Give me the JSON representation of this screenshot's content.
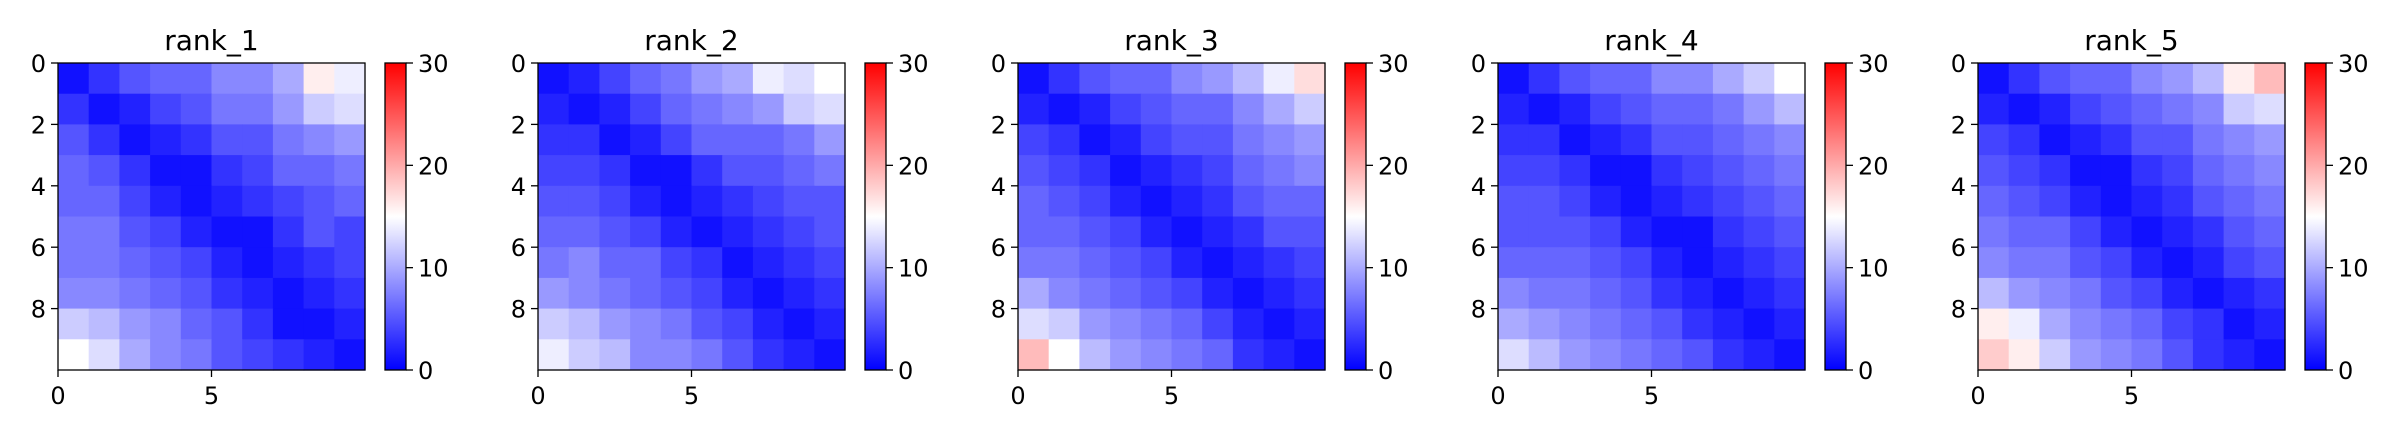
{
  "chart_data": [
    {
      "type": "heatmap",
      "title": "rank_1",
      "xticks": [
        0,
        5
      ],
      "yticks": [
        0,
        2,
        4,
        6,
        8
      ],
      "colorbar": {
        "ticks": [
          0,
          10,
          20,
          30
        ],
        "vmin": 0,
        "vmax": 30,
        "cmap": "bwr"
      },
      "matrix": [
        [
          1,
          3,
          5,
          6,
          6,
          8,
          8,
          10,
          16,
          14
        ],
        [
          3,
          1,
          2,
          4,
          5,
          7,
          7,
          9,
          12,
          13
        ],
        [
          5,
          3,
          1,
          2,
          3,
          5,
          5,
          7,
          8,
          9
        ],
        [
          6,
          5,
          3,
          1,
          1,
          3,
          4,
          6,
          6,
          7
        ],
        [
          6,
          6,
          4,
          2,
          1,
          2,
          3,
          4,
          5,
          6
        ],
        [
          7,
          7,
          5,
          4,
          2,
          1,
          1,
          3,
          5,
          4
        ],
        [
          7,
          7,
          6,
          5,
          4,
          2,
          1,
          2,
          3,
          4
        ],
        [
          8,
          8,
          7,
          6,
          5,
          3,
          2,
          1,
          2,
          3
        ],
        [
          12,
          11,
          9,
          8,
          6,
          5,
          3,
          1,
          1,
          2
        ],
        [
          15,
          13,
          10,
          8,
          7,
          5,
          4,
          3,
          2,
          1
        ]
      ]
    },
    {
      "type": "heatmap",
      "title": "rank_2",
      "xticks": [
        0,
        5
      ],
      "yticks": [
        0,
        2,
        4,
        6,
        8
      ],
      "colorbar": {
        "ticks": [
          0,
          10,
          20,
          30
        ],
        "vmin": 0,
        "vmax": 30,
        "cmap": "bwr"
      },
      "matrix": [
        [
          1,
          2,
          4,
          6,
          7,
          9,
          10,
          14,
          13,
          15
        ],
        [
          2,
          1,
          2,
          4,
          6,
          7,
          8,
          9,
          12,
          13
        ],
        [
          3,
          3,
          1,
          2,
          4,
          6,
          6,
          6,
          7,
          9
        ],
        [
          4,
          4,
          3,
          1,
          1,
          3,
          5,
          5,
          6,
          7
        ],
        [
          5,
          5,
          4,
          2,
          1,
          2,
          3,
          4,
          5,
          5
        ],
        [
          6,
          6,
          5,
          4,
          2,
          1,
          2,
          3,
          4,
          5
        ],
        [
          7,
          8,
          6,
          6,
          4,
          3,
          1,
          2,
          3,
          4
        ],
        [
          9,
          8,
          7,
          6,
          5,
          4,
          2,
          1,
          2,
          3
        ],
        [
          12,
          11,
          9,
          8,
          7,
          5,
          4,
          2,
          1,
          2
        ],
        [
          14,
          12,
          11,
          8,
          8,
          7,
          5,
          3,
          2,
          1
        ]
      ]
    },
    {
      "type": "heatmap",
      "title": "rank_3",
      "xticks": [
        0,
        5
      ],
      "yticks": [
        0,
        2,
        4,
        6,
        8
      ],
      "colorbar": {
        "ticks": [
          0,
          10,
          20,
          30
        ],
        "vmin": 0,
        "vmax": 30,
        "cmap": "bwr"
      },
      "matrix": [
        [
          1,
          3,
          5,
          6,
          6,
          8,
          9,
          11,
          14,
          17
        ],
        [
          2,
          1,
          2,
          4,
          5,
          6,
          6,
          8,
          10,
          12
        ],
        [
          4,
          3,
          1,
          2,
          4,
          5,
          5,
          7,
          8,
          9
        ],
        [
          5,
          4,
          3,
          1,
          2,
          3,
          4,
          6,
          7,
          8
        ],
        [
          6,
          5,
          4,
          2,
          1,
          2,
          3,
          5,
          6,
          6
        ],
        [
          6,
          6,
          5,
          4,
          2,
          1,
          2,
          3,
          5,
          5
        ],
        [
          7,
          7,
          6,
          5,
          4,
          2,
          1,
          2,
          3,
          4
        ],
        [
          10,
          8,
          7,
          6,
          5,
          4,
          2,
          1,
          2,
          3
        ],
        [
          13,
          12,
          9,
          8,
          7,
          6,
          4,
          2,
          1,
          2
        ],
        [
          19,
          15,
          11,
          9,
          8,
          7,
          6,
          3,
          2,
          1
        ]
      ]
    },
    {
      "type": "heatmap",
      "title": "rank_4",
      "xticks": [
        0,
        5
      ],
      "yticks": [
        0,
        2,
        4,
        6,
        8
      ],
      "colorbar": {
        "ticks": [
          0,
          10,
          20,
          30
        ],
        "vmin": 0,
        "vmax": 30,
        "cmap": "bwr"
      },
      "matrix": [
        [
          1,
          3,
          5,
          6,
          6,
          8,
          8,
          10,
          12,
          15
        ],
        [
          2,
          1,
          2,
          4,
          5,
          6,
          6,
          7,
          9,
          11
        ],
        [
          3,
          3,
          1,
          2,
          3,
          5,
          5,
          6,
          7,
          8
        ],
        [
          4,
          4,
          3,
          1,
          1,
          3,
          4,
          5,
          6,
          7
        ],
        [
          5,
          5,
          4,
          2,
          1,
          2,
          3,
          4,
          5,
          6
        ],
        [
          5,
          5,
          5,
          4,
          2,
          1,
          1,
          3,
          4,
          5
        ],
        [
          6,
          6,
          6,
          5,
          4,
          2,
          1,
          2,
          3,
          4
        ],
        [
          8,
          7,
          7,
          6,
          5,
          3,
          2,
          1,
          2,
          3
        ],
        [
          10,
          9,
          8,
          7,
          6,
          5,
          3,
          2,
          1,
          2
        ],
        [
          13,
          11,
          9,
          8,
          7,
          6,
          5,
          3,
          2,
          1
        ]
      ]
    },
    {
      "type": "heatmap",
      "title": "rank_5",
      "xticks": [
        0,
        5
      ],
      "yticks": [
        0,
        2,
        4,
        6,
        8
      ],
      "colorbar": {
        "ticks": [
          0,
          10,
          20,
          30
        ],
        "vmin": 0,
        "vmax": 30,
        "cmap": "bwr"
      },
      "matrix": [
        [
          1,
          3,
          5,
          6,
          6,
          8,
          9,
          11,
          16,
          19
        ],
        [
          2,
          1,
          2,
          4,
          5,
          6,
          7,
          8,
          12,
          13
        ],
        [
          4,
          3,
          1,
          2,
          3,
          5,
          5,
          7,
          8,
          9
        ],
        [
          5,
          4,
          3,
          1,
          1,
          3,
          4,
          6,
          7,
          8
        ],
        [
          6,
          5,
          4,
          2,
          1,
          2,
          3,
          5,
          6,
          7
        ],
        [
          7,
          6,
          6,
          4,
          2,
          1,
          2,
          3,
          5,
          6
        ],
        [
          8,
          7,
          7,
          5,
          4,
          2,
          1,
          2,
          4,
          5
        ],
        [
          11,
          9,
          8,
          7,
          5,
          4,
          2,
          1,
          2,
          3
        ],
        [
          16,
          14,
          10,
          8,
          7,
          6,
          4,
          3,
          1,
          2
        ],
        [
          18,
          16,
          12,
          9,
          8,
          7,
          5,
          3,
          2,
          1
        ]
      ]
    }
  ]
}
